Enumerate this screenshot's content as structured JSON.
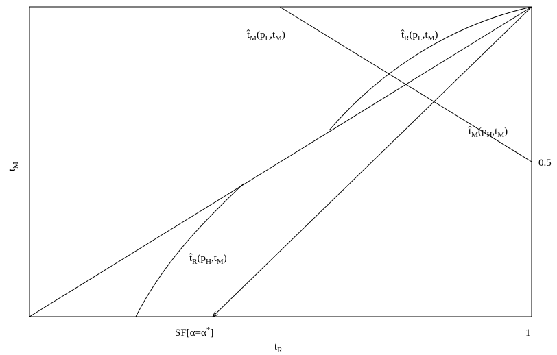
{
  "axes": {
    "x_label": [
      {
        "text": "t"
      },
      {
        "text": "R",
        "sub": true
      }
    ],
    "y_label": [
      {
        "text": "t"
      },
      {
        "text": "M",
        "sub": true
      }
    ],
    "x_ticks": [
      [
        {
          "text": "SF[α=α"
        },
        {
          "text": "*",
          "sup": true
        },
        {
          "text": "]"
        }
      ],
      [
        {
          "text": "1"
        }
      ]
    ],
    "y_ticks": [
      [
        {
          "text": "0.5"
        }
      ]
    ]
  },
  "curves": [
    [
      {
        "text": "t̂"
      },
      {
        "text": "M",
        "sub": true
      },
      {
        "text": "(p"
      },
      {
        "text": "L",
        "sub": true
      },
      {
        "text": ",t"
      },
      {
        "text": "M",
        "sub": true
      },
      {
        "text": ")"
      }
    ],
    [
      {
        "text": "t̂"
      },
      {
        "text": "R",
        "sub": true
      },
      {
        "text": "(p"
      },
      {
        "text": "L",
        "sub": true
      },
      {
        "text": ",t"
      },
      {
        "text": "M",
        "sub": true
      },
      {
        "text": ")"
      }
    ],
    [
      {
        "text": "t̂"
      },
      {
        "text": "M",
        "sub": true
      },
      {
        "text": "(p"
      },
      {
        "text": "H",
        "sub": true
      },
      {
        "text": ",t"
      },
      {
        "text": "M",
        "sub": true
      },
      {
        "text": ")"
      }
    ],
    [
      {
        "text": "t̂"
      },
      {
        "text": "R",
        "sub": true
      },
      {
        "text": "(p"
      },
      {
        "text": "H",
        "sub": true
      },
      {
        "text": ",t"
      },
      {
        "text": "M",
        "sub": true
      },
      {
        "text": ")"
      }
    ]
  ]
}
